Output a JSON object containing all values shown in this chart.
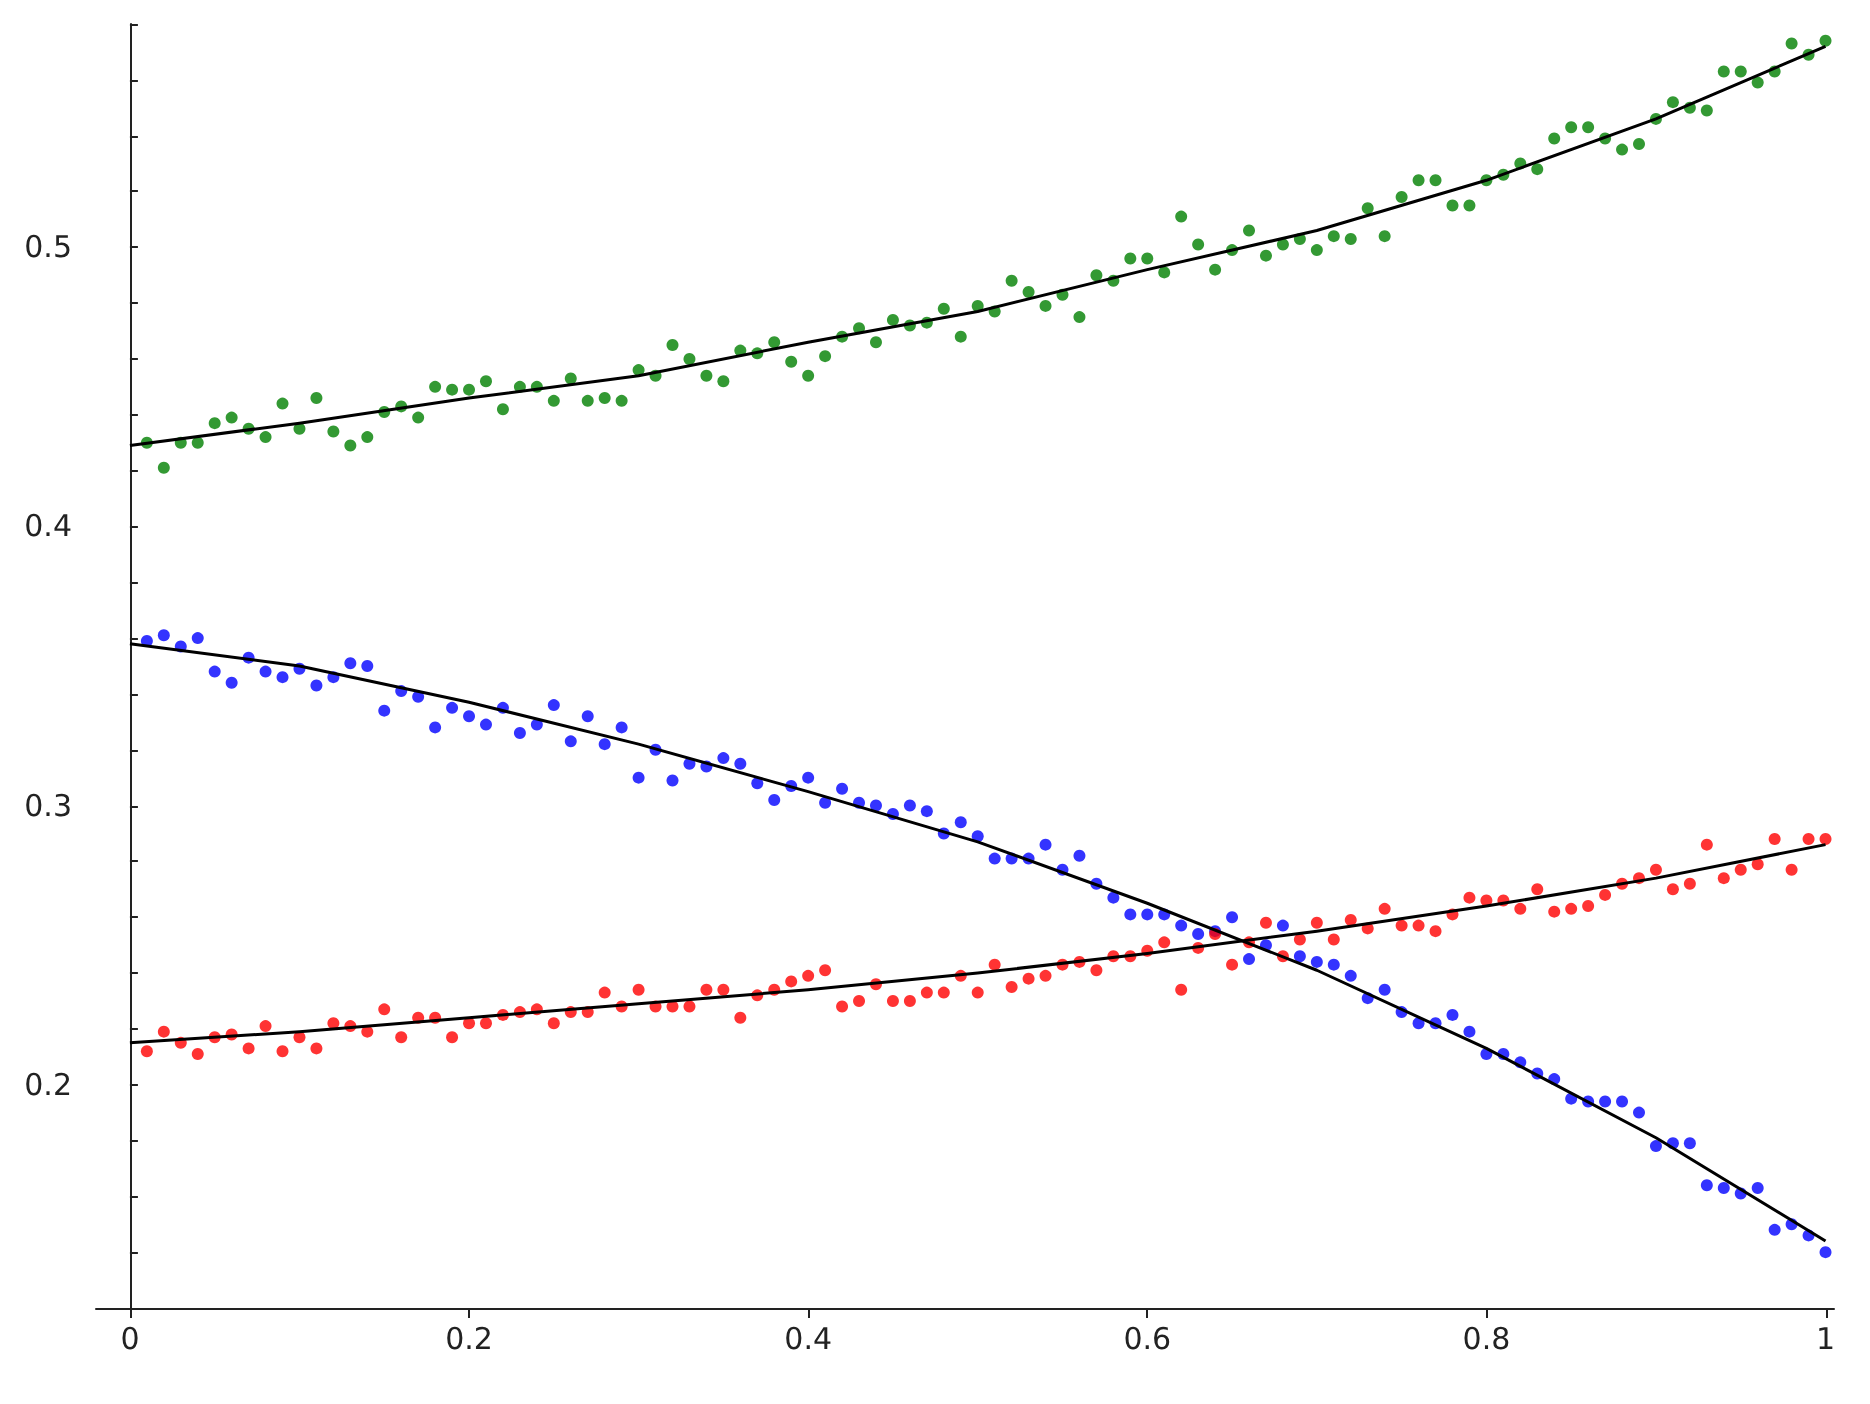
{
  "chart_data": {
    "type": "scatter",
    "x": [
      0.01,
      0.02,
      0.03,
      0.04,
      0.05,
      0.06,
      0.07,
      0.08,
      0.09,
      0.1,
      0.11,
      0.12,
      0.13,
      0.14,
      0.15,
      0.16,
      0.17,
      0.18,
      0.19,
      0.2,
      0.21,
      0.22,
      0.23,
      0.24,
      0.25,
      0.26,
      0.27,
      0.28,
      0.29,
      0.3,
      0.31,
      0.32,
      0.33,
      0.34,
      0.35,
      0.36,
      0.37,
      0.38,
      0.39,
      0.4,
      0.41,
      0.42,
      0.43,
      0.44,
      0.45,
      0.46,
      0.47,
      0.48,
      0.49,
      0.5,
      0.51,
      0.52,
      0.53,
      0.54,
      0.55,
      0.56,
      0.57,
      0.58,
      0.59,
      0.6,
      0.61,
      0.62,
      0.63,
      0.64,
      0.65,
      0.66,
      0.67,
      0.68,
      0.69,
      0.7,
      0.71,
      0.72,
      0.73,
      0.74,
      0.75,
      0.76,
      0.77,
      0.78,
      0.79,
      0.8,
      0.81,
      0.82,
      0.83,
      0.84,
      0.85,
      0.86,
      0.87,
      0.88,
      0.89,
      0.9,
      0.91,
      0.92,
      0.93,
      0.94,
      0.95,
      0.96,
      0.97,
      0.98,
      0.99,
      1
    ],
    "series": [
      {
        "color": "#008000",
        "values": [
          0.43,
          0.421,
          0.43,
          0.43,
          0.437,
          0.439,
          0.435,
          0.432,
          0.444,
          0.435,
          0.446,
          0.434,
          0.429,
          0.432,
          0.441,
          0.443,
          0.439,
          0.45,
          0.449,
          0.449,
          0.452,
          0.442,
          0.45,
          0.45,
          0.445,
          0.453,
          0.445,
          0.446,
          0.445,
          0.456,
          0.454,
          0.465,
          0.46,
          0.454,
          0.452,
          0.463,
          0.462,
          0.466,
          0.459,
          0.454,
          0.461,
          0.468,
          0.471,
          0.466,
          0.474,
          0.472,
          0.473,
          0.478,
          0.468,
          0.479,
          0.477,
          0.488,
          0.484,
          0.479,
          0.483,
          0.475,
          0.49,
          0.488,
          0.496,
          0.496,
          0.491,
          0.511,
          0.501,
          0.492,
          0.499,
          0.506,
          0.497,
          0.501,
          0.503,
          0.499,
          0.504,
          0.503,
          0.514,
          0.504,
          0.518,
          0.524,
          0.524,
          0.515,
          0.515,
          0.524,
          0.526,
          0.53,
          0.528,
          0.539,
          0.543,
          0.543,
          0.539,
          0.535,
          0.537,
          0.546,
          0.552,
          0.55,
          0.549,
          0.563,
          0.563,
          0.559,
          0.563,
          0.573,
          0.569,
          0.574
        ]
      },
      {
        "color": "#0000ff",
        "values": [
          0.359,
          0.361,
          0.357,
          0.36,
          0.348,
          0.344,
          0.353,
          0.348,
          0.346,
          0.349,
          0.343,
          0.346,
          0.351,
          0.35,
          0.334,
          0.341,
          0.339,
          0.328,
          0.335,
          0.332,
          0.329,
          0.335,
          0.326,
          0.329,
          0.336,
          0.323,
          0.332,
          0.322,
          0.328,
          0.31,
          0.32,
          0.309,
          0.315,
          0.314,
          0.317,
          0.315,
          0.308,
          0.302,
          0.307,
          0.31,
          0.301,
          0.306,
          0.301,
          0.3,
          0.297,
          0.3,
          0.298,
          0.29,
          0.294,
          0.289,
          0.281,
          0.281,
          0.281,
          0.286,
          0.277,
          0.282,
          0.272,
          0.267,
          0.261,
          0.261,
          0.261,
          0.257,
          0.254,
          0.255,
          0.26,
          0.245,
          0.25,
          0.257,
          0.246,
          0.244,
          0.243,
          0.239,
          0.231,
          0.234,
          0.226,
          0.222,
          0.222,
          0.225,
          0.219,
          0.211,
          0.211,
          0.208,
          0.204,
          0.202,
          0.195,
          0.194,
          0.194,
          0.194,
          0.19,
          0.178,
          0.179,
          0.179,
          0.164,
          0.163,
          0.161,
          0.163,
          0.148,
          0.15,
          0.146,
          0.14
        ]
      },
      {
        "color": "#ff0000",
        "values": [
          0.212,
          0.219,
          0.215,
          0.211,
          0.217,
          0.218,
          0.213,
          0.221,
          0.212,
          0.217,
          0.213,
          0.222,
          0.221,
          0.219,
          0.227,
          0.217,
          0.224,
          0.224,
          0.217,
          0.222,
          0.222,
          0.225,
          0.226,
          0.227,
          0.222,
          0.226,
          0.226,
          0.233,
          0.228,
          0.234,
          0.228,
          0.228,
          0.228,
          0.234,
          0.234,
          0.224,
          0.232,
          0.234,
          0.237,
          0.239,
          0.241,
          0.228,
          0.23,
          0.236,
          0.23,
          0.23,
          0.233,
          0.233,
          0.239,
          0.233,
          0.243,
          0.235,
          0.238,
          0.239,
          0.243,
          0.244,
          0.241,
          0.246,
          0.246,
          0.248,
          0.251,
          0.234,
          0.249,
          0.254,
          0.243,
          0.251,
          0.258,
          0.246,
          0.252,
          0.258,
          0.252,
          0.259,
          0.256,
          0.263,
          0.257,
          0.257,
          0.255,
          0.261,
          0.267,
          0.266,
          0.266,
          0.263,
          0.27,
          0.262,
          0.263,
          0.264,
          0.268,
          0.272,
          0.274,
          0.277,
          0.27,
          0.272,
          0.286,
          0.274,
          0.277,
          0.279,
          0.288,
          0.277,
          0.288,
          0.288
        ]
      },
      {
        "type": "line",
        "marker": "none",
        "color": "#000000",
        "x": [
          0,
          0.1,
          0.2,
          0.3,
          0.4,
          0.5,
          0.6,
          0.7,
          0.8,
          0.9,
          1
        ],
        "values": [
          0.429,
          0.437,
          0.446,
          0.454,
          0.466,
          0.477,
          0.492,
          0.506,
          0.524,
          0.546,
          0.572
        ]
      },
      {
        "type": "line",
        "marker": "none",
        "color": "#000000",
        "x": [
          0,
          0.1,
          0.2,
          0.3,
          0.4,
          0.5,
          0.6,
          0.7,
          0.8,
          0.9,
          1
        ],
        "values": [
          0.358,
          0.35,
          0.337,
          0.322,
          0.305,
          0.287,
          0.265,
          0.241,
          0.213,
          0.181,
          0.144
        ]
      },
      {
        "type": "line",
        "marker": "none",
        "color": "#000000",
        "x": [
          0,
          0.1,
          0.2,
          0.3,
          0.4,
          0.5,
          0.6,
          0.7,
          0.8,
          0.9,
          1
        ],
        "values": [
          0.215,
          0.219,
          0.224,
          0.229,
          0.234,
          0.24,
          0.247,
          0.255,
          0.264,
          0.274,
          0.286
        ]
      }
    ],
    "xlim": [
      -0.02,
      1.005
    ],
    "ylim": [
      0.12,
      0.58
    ],
    "xticks": [
      0,
      0.2,
      0.4,
      0.6,
      0.8,
      1
    ],
    "yticks": [
      {
        "value": 0.14,
        "label": null
      },
      {
        "value": 0.16,
        "label": null
      },
      {
        "value": 0.18,
        "label": null
      },
      0.2,
      {
        "value": 0.22,
        "label": null
      },
      {
        "value": 0.24,
        "label": null
      },
      {
        "value": 0.26,
        "label": null
      },
      {
        "value": 0.28,
        "label": null
      },
      0.3,
      {
        "value": 0.32,
        "label": null
      },
      {
        "value": 0.34,
        "label": null
      },
      {
        "value": 0.36,
        "label": null
      },
      {
        "value": 0.38,
        "label": null
      },
      0.4,
      {
        "value": 0.42,
        "label": null
      },
      {
        "value": 0.44,
        "label": null
      },
      {
        "value": 0.46,
        "label": null
      },
      {
        "value": 0.48,
        "label": null
      },
      0.5,
      {
        "value": 0.52,
        "label": null
      },
      {
        "value": 0.54,
        "label": null
      },
      {
        "value": 0.56,
        "label": null
      },
      {
        "value": 0.58,
        "label": null
      }
    ],
    "grid": false,
    "marker": "circle"
  }
}
